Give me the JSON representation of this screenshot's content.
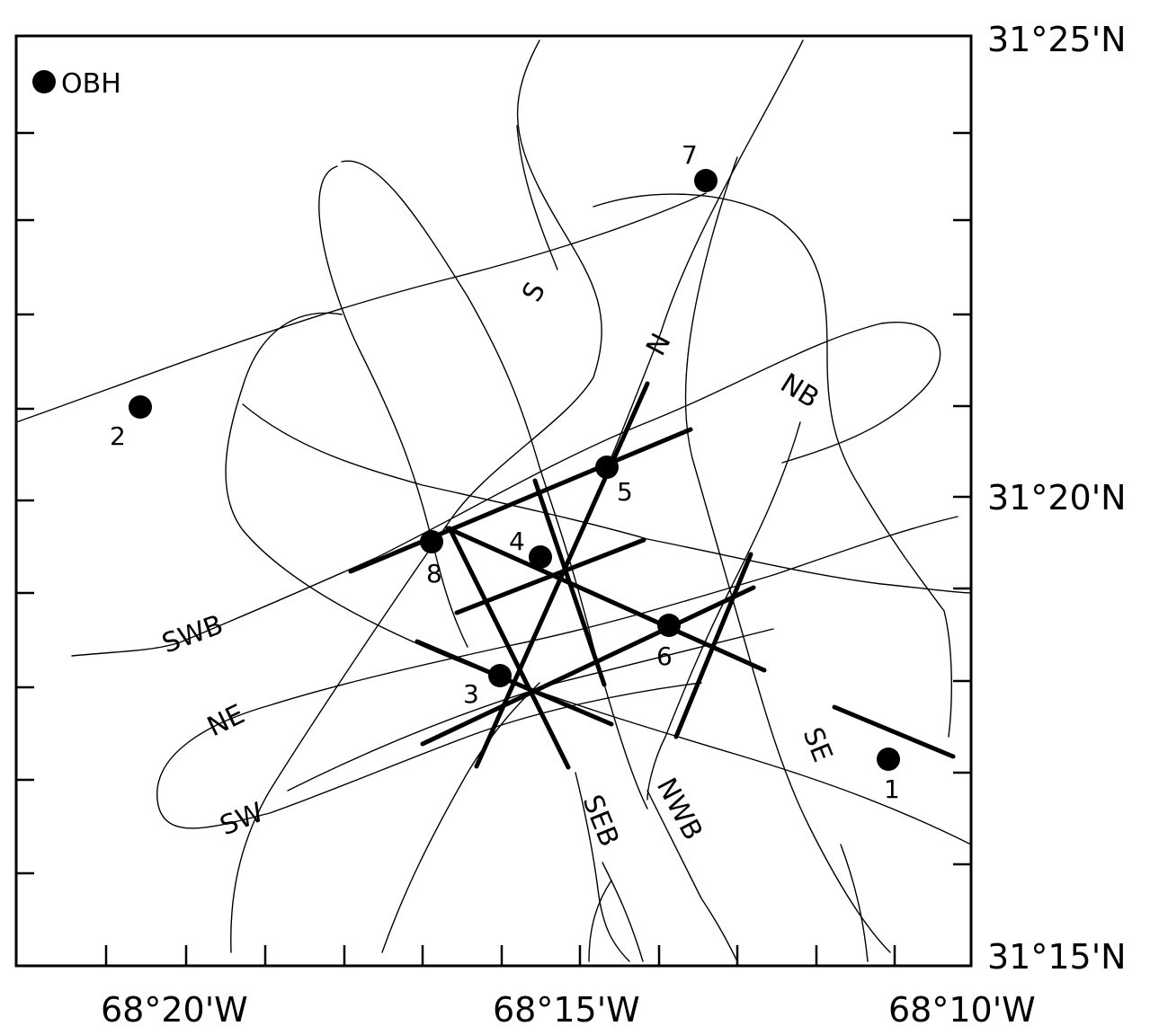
{
  "axes": {
    "lat_labels": [
      "31°25'N",
      "31°20'N",
      "31°15'N"
    ],
    "lon_labels": [
      "68°20'W",
      "68°15'W",
      "68°10'W"
    ]
  },
  "legend": {
    "label": "OBH"
  },
  "obh_stations": [
    "1",
    "2",
    "3",
    "4",
    "5",
    "6",
    "7",
    "8"
  ],
  "track_labels": {
    "s": "S",
    "n": "N",
    "nb": "NB",
    "swb": "SWB",
    "ne": "NE",
    "sw": "SW",
    "seb": "SEB",
    "nwb": "NWB",
    "se": "SE"
  }
}
